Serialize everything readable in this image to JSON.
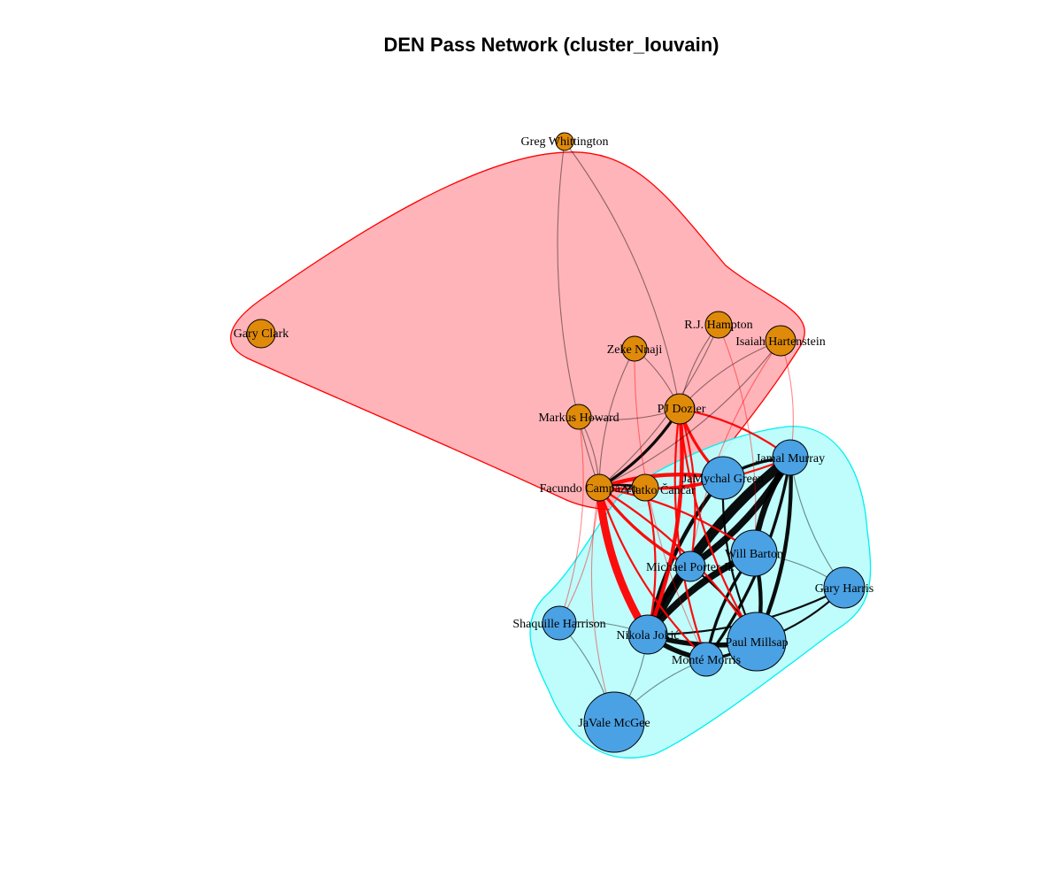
{
  "title": "DEN Pass Network (cluster_louvain)",
  "colors": {
    "group1_fill": "#ffb0b5",
    "group1_stroke": "#ff0000",
    "group2_fill": "#bcfcfc",
    "group2_stroke": "#00f0f0",
    "node_group1": "#e08a0a",
    "node_group2": "#4aa1e3",
    "edge_between": "#ff0000",
    "edge_within": "#000000"
  },
  "nodes": [
    {
      "id": "greg-whittington",
      "label": "Greg Whittington",
      "group": 1
    },
    {
      "id": "gary-clark",
      "label": "Gary Clark",
      "group": 1
    },
    {
      "id": "rj-hampton",
      "label": "R.J. Hampton",
      "group": 1
    },
    {
      "id": "isaiah-hartenstein",
      "label": "Isaiah Hartenstein",
      "group": 1
    },
    {
      "id": "zeke-nnaji",
      "label": "Zeke Nnaji",
      "group": 1
    },
    {
      "id": "pj-dozier",
      "label": "PJ Dozier",
      "group": 1
    },
    {
      "id": "markus-howard",
      "label": "Markus Howard",
      "group": 1
    },
    {
      "id": "facundo-campazzo",
      "label": "Facundo Campazzo",
      "group": 1
    },
    {
      "id": "vlatko-cancar",
      "label": "Vlatko Čančar",
      "group": 1
    },
    {
      "id": "jamal-murray",
      "label": "Jamal Murray",
      "group": 2
    },
    {
      "id": "jamychal-green",
      "label": "JaMychal Green",
      "group": 2
    },
    {
      "id": "will-barton",
      "label": "Will Barton",
      "group": 2
    },
    {
      "id": "michael-porter",
      "label": "Michael Porter Jr.",
      "group": 2
    },
    {
      "id": "gary-harris",
      "label": "Gary Harris",
      "group": 2
    },
    {
      "id": "shaquille-harrison",
      "label": "Shaquille Harrison",
      "group": 2
    },
    {
      "id": "nikola-jokic",
      "label": "Nikola Jokić",
      "group": 2
    },
    {
      "id": "paul-millsap",
      "label": "Paul Millsap",
      "group": 2
    },
    {
      "id": "monte-morris",
      "label": "Monté Morris",
      "group": 2
    },
    {
      "id": "javale-mcgee",
      "label": "JaVale McGee",
      "group": 2
    }
  ],
  "edges": [
    {
      "from": "jamal-murray",
      "to": "nikola-jokic",
      "weight": 10
    },
    {
      "from": "jamal-murray",
      "to": "michael-porter",
      "weight": 7
    },
    {
      "from": "jamal-murray",
      "to": "will-barton",
      "weight": 6
    },
    {
      "from": "jamal-murray",
      "to": "paul-millsap",
      "weight": 4
    },
    {
      "from": "jamal-murray",
      "to": "jamychal-green",
      "weight": 3
    },
    {
      "from": "jamal-murray",
      "to": "monte-morris",
      "weight": 3
    },
    {
      "from": "jamal-murray",
      "to": "gary-harris",
      "weight": 1
    },
    {
      "from": "nikola-jokic",
      "to": "will-barton",
      "weight": 7
    },
    {
      "from": "nikola-jokic",
      "to": "paul-millsap",
      "weight": 5
    },
    {
      "from": "nikola-jokic",
      "to": "michael-porter",
      "weight": 5
    },
    {
      "from": "nikola-jokic",
      "to": "monte-morris",
      "weight": 5
    },
    {
      "from": "nikola-jokic",
      "to": "jamychal-green",
      "weight": 4
    },
    {
      "from": "nikola-jokic",
      "to": "gary-harris",
      "weight": 2
    },
    {
      "from": "nikola-jokic",
      "to": "javale-mcgee",
      "weight": 1
    },
    {
      "from": "nikola-jokic",
      "to": "shaquille-harrison",
      "weight": 1
    },
    {
      "from": "will-barton",
      "to": "paul-millsap",
      "weight": 4
    },
    {
      "from": "will-barton",
      "to": "monte-morris",
      "weight": 3
    },
    {
      "from": "will-barton",
      "to": "gary-harris",
      "weight": 1
    },
    {
      "from": "paul-millsap",
      "to": "gary-harris",
      "weight": 2
    },
    {
      "from": "paul-millsap",
      "to": "monte-morris",
      "weight": 3
    },
    {
      "from": "monte-morris",
      "to": "javale-mcgee",
      "weight": 1
    },
    {
      "from": "shaquille-harrison",
      "to": "javale-mcgee",
      "weight": 1
    },
    {
      "from": "jamychal-green",
      "to": "paul-millsap",
      "weight": 2
    },
    {
      "from": "michael-porter",
      "to": "paul-millsap",
      "weight": 2
    },
    {
      "from": "facundo-campazzo",
      "to": "nikola-jokic",
      "weight": 8
    },
    {
      "from": "facundo-campazzo",
      "to": "jamychal-green",
      "weight": 4
    },
    {
      "from": "facundo-campazzo",
      "to": "michael-porter",
      "weight": 3
    },
    {
      "from": "facundo-campazzo",
      "to": "will-barton",
      "weight": 2
    },
    {
      "from": "facundo-campazzo",
      "to": "monte-morris",
      "weight": 2
    },
    {
      "from": "facundo-campazzo",
      "to": "paul-millsap",
      "weight": 2
    },
    {
      "from": "facundo-campazzo",
      "to": "jamal-murray",
      "weight": 2
    },
    {
      "from": "facundo-campazzo",
      "to": "shaquille-harrison",
      "weight": 1
    },
    {
      "from": "facundo-campazzo",
      "to": "javale-mcgee",
      "weight": 1
    },
    {
      "from": "pj-dozier",
      "to": "nikola-jokic",
      "weight": 4
    },
    {
      "from": "pj-dozier",
      "to": "jamychal-green",
      "weight": 3
    },
    {
      "from": "pj-dozier",
      "to": "michael-porter",
      "weight": 2
    },
    {
      "from": "pj-dozier",
      "to": "paul-millsap",
      "weight": 2
    },
    {
      "from": "pj-dozier",
      "to": "jamal-murray",
      "weight": 2
    },
    {
      "from": "pj-dozier",
      "to": "monte-morris",
      "weight": 2
    },
    {
      "from": "pj-dozier",
      "to": "facundo-campazzo",
      "weight": 3
    },
    {
      "from": "vlatko-cancar",
      "to": "jamychal-green",
      "weight": 2
    },
    {
      "from": "vlatko-cancar",
      "to": "nikola-jokic",
      "weight": 2
    },
    {
      "from": "vlatko-cancar",
      "to": "facundo-campazzo",
      "weight": 2
    },
    {
      "from": "isaiah-hartenstein",
      "to": "facundo-campazzo",
      "weight": 1
    },
    {
      "from": "isaiah-hartenstein",
      "to": "pj-dozier",
      "weight": 1
    },
    {
      "from": "isaiah-hartenstein",
      "to": "jamal-murray",
      "weight": 1
    },
    {
      "from": "isaiah-hartenstein",
      "to": "michael-porter",
      "weight": 1
    },
    {
      "from": "rj-hampton",
      "to": "facundo-campazzo",
      "weight": 1
    },
    {
      "from": "rj-hampton",
      "to": "pj-dozier",
      "weight": 1
    },
    {
      "from": "rj-hampton",
      "to": "will-barton",
      "weight": 1
    },
    {
      "from": "zeke-nnaji",
      "to": "facundo-campazzo",
      "weight": 1
    },
    {
      "from": "zeke-nnaji",
      "to": "pj-dozier",
      "weight": 1
    },
    {
      "from": "zeke-nnaji",
      "to": "monte-morris",
      "weight": 1
    },
    {
      "from": "markus-howard",
      "to": "facundo-campazzo",
      "weight": 1
    },
    {
      "from": "markus-howard",
      "to": "pj-dozier",
      "weight": 1
    },
    {
      "from": "markus-howard",
      "to": "shaquille-harrison",
      "weight": 1
    },
    {
      "from": "greg-whittington",
      "to": "facundo-campazzo",
      "weight": 1
    },
    {
      "from": "greg-whittington",
      "to": "pj-dozier",
      "weight": 1
    }
  ]
}
